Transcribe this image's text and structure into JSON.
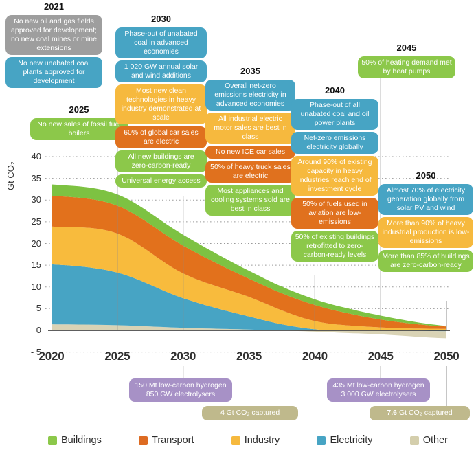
{
  "chart_data": {
    "type": "area",
    "stacked": true,
    "x": [
      2020,
      2025,
      2030,
      2035,
      2040,
      2045,
      2050
    ],
    "series": [
      {
        "name": "Other",
        "color": "#D9D3B5",
        "values": [
          1.4,
          1.2,
          0.6,
          0.2,
          -0.3,
          -0.9,
          -1.6
        ]
      },
      {
        "name": "Electricity",
        "color": "#47A4C4",
        "values": [
          13.8,
          12.1,
          6.8,
          3.0,
          0.25,
          0.0,
          -0.2
        ]
      },
      {
        "name": "Industry",
        "color": "#F8BB3D",
        "values": [
          8.7,
          9.0,
          5.7,
          4.5,
          1.9,
          0.7,
          0.35
        ]
      },
      {
        "name": "Transport",
        "color": "#E2711C",
        "values": [
          7.1,
          6.4,
          6.4,
          4.2,
          3.7,
          1.8,
          0.55
        ]
      },
      {
        "name": "Buildings",
        "color": "#7DC242",
        "values": [
          2.6,
          2.6,
          2.5,
          1.8,
          1.3,
          0.9,
          0.15
        ]
      }
    ],
    "ylabel": "Gt CO₂",
    "xlabel": "",
    "ylim": [
      -5,
      40
    ],
    "yticks": [
      40,
      35,
      30,
      25,
      20,
      15,
      10,
      5,
      0,
      -5
    ],
    "ytick_labels": [
      "40",
      "35",
      "30",
      "25",
      "20",
      "15",
      "10",
      "5",
      "0",
      "- 5"
    ],
    "xticks": [
      2020,
      2025,
      2030,
      2035,
      2040,
      2045,
      2050
    ],
    "grid": "dotted-horizontal",
    "legend_position": "bottom"
  },
  "category_colors": {
    "fossil-supply": "#9E9E9E",
    "electricity": "#47A4C4",
    "industry": "#F6B93E",
    "transport": "#E0711E",
    "buildings": "#8CC84A",
    "hydrogen": "#A791C6",
    "ccus": "#BFB98C"
  },
  "milestones": [
    {
      "year": "2021",
      "boxes": [
        {
          "category": "fossil-supply",
          "text": "No new oil and gas fields approved for development; no new coal mines or mine extensions"
        },
        {
          "category": "electricity",
          "text": "No new unabated coal plants approved for development"
        }
      ]
    },
    {
      "year": "2025",
      "boxes": [
        {
          "category": "buildings",
          "text": "No new sales of fossil fuel boilers"
        }
      ]
    },
    {
      "year": "2030",
      "boxes": [
        {
          "category": "electricity",
          "text": "Phase-out of unabated coal in advanced economies"
        },
        {
          "category": "electricity",
          "text": "1 020 GW annual solar and wind additions"
        },
        {
          "category": "industry",
          "text": "Most new clean technologies in heavy industry demonstrated at scale"
        },
        {
          "category": "transport",
          "text": "60% of global car sales are electric"
        },
        {
          "category": "buildings",
          "text": "All new buildings are zero-carbon-ready"
        },
        {
          "category": "buildings",
          "text": "Universal energy access"
        }
      ]
    },
    {
      "year": "2035",
      "boxes": [
        {
          "category": "electricity",
          "text": "Overall net-zero emissions electricity in advanced economies"
        },
        {
          "category": "industry",
          "text": "All industrial electric motor sales are best in class"
        },
        {
          "category": "transport",
          "text": "No new ICE car sales"
        },
        {
          "category": "transport",
          "text": "50% of heavy truck sales are electric"
        },
        {
          "category": "buildings",
          "text": "Most appliances and cooling systems sold are best in class"
        }
      ]
    },
    {
      "year": "2040",
      "boxes": [
        {
          "category": "electricity",
          "text": "Phase-out of all unabated coal and oil power plants"
        },
        {
          "category": "electricity",
          "text": "Net-zero emissions electricity globally"
        },
        {
          "category": "industry",
          "text": "Around 90% of existing capacity in heavy industries reach end of investment cycle"
        },
        {
          "category": "transport",
          "text": "50% of fuels used in aviation are low-emissions"
        },
        {
          "category": "buildings",
          "text": "50% of existing buildings retrofitted to zero-carbon-ready levels"
        }
      ]
    },
    {
      "year": "2045",
      "boxes": [
        {
          "category": "buildings",
          "text": "50% of heating demand met by heat pumps"
        }
      ]
    },
    {
      "year": "2050",
      "boxes": [
        {
          "category": "electricity",
          "text": "Almost 70% of electricity generation globally from solar PV and wind"
        },
        {
          "category": "industry",
          "text": "More than 90% of heavy industrial production is low-emissions"
        },
        {
          "category": "buildings",
          "text": "More than 85% of buildings are zero-carbon-ready"
        }
      ]
    }
  ],
  "bottom_callouts": [
    {
      "anchor_year": "2030",
      "category": "hydrogen",
      "lines": [
        "150 Mt low-carbon hydrogen",
        "850 GW electrolysers"
      ]
    },
    {
      "anchor_year": "2035",
      "category": "ccus",
      "value": "4",
      "unit_text": " Gt CO₂ captured"
    },
    {
      "anchor_year": "2045",
      "category": "hydrogen",
      "lines": [
        "435 Mt low-carbon hydrogen",
        "3 000 GW electrolysers"
      ]
    },
    {
      "anchor_year": "2050",
      "category": "ccus",
      "value": "7.6",
      "unit_text": " Gt CO₂ captured"
    }
  ],
  "legend": {
    "items": [
      {
        "label": "Buildings",
        "color": "#8CC84A"
      },
      {
        "label": "Transport",
        "color": "#DD6B22"
      },
      {
        "label": "Industry",
        "color": "#F6B93E"
      },
      {
        "label": "Electricity",
        "color": "#47A4C4"
      },
      {
        "label": "Other",
        "color": "#D4CEAC"
      }
    ]
  }
}
